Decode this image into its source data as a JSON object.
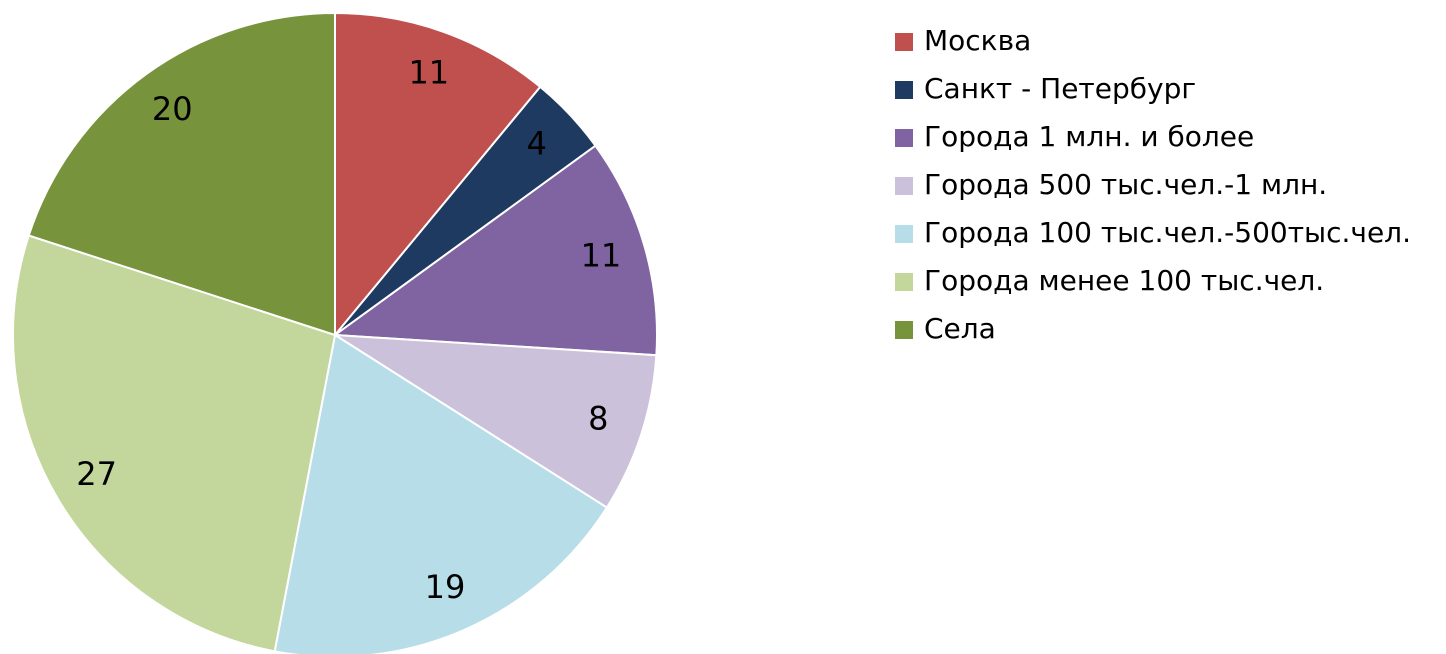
{
  "chart_data": {
    "type": "pie",
    "categories": [
      "Москва",
      "Санкт - Петербург",
      "Города 1 млн. и более",
      "Города 500 тыс.чел.-1 млн.",
      "Города 100 тыс.чел.-500тыс.чел.",
      "Города менее 100 тыс.чел.",
      "Села"
    ],
    "values": [
      11,
      4,
      11,
      8,
      19,
      27,
      20
    ],
    "colors": [
      "#c0504d",
      "#1f3a60",
      "#8064a2",
      "#ccc1da",
      "#b7dde8",
      "#c3d69b",
      "#77933c"
    ],
    "legend": "right"
  }
}
